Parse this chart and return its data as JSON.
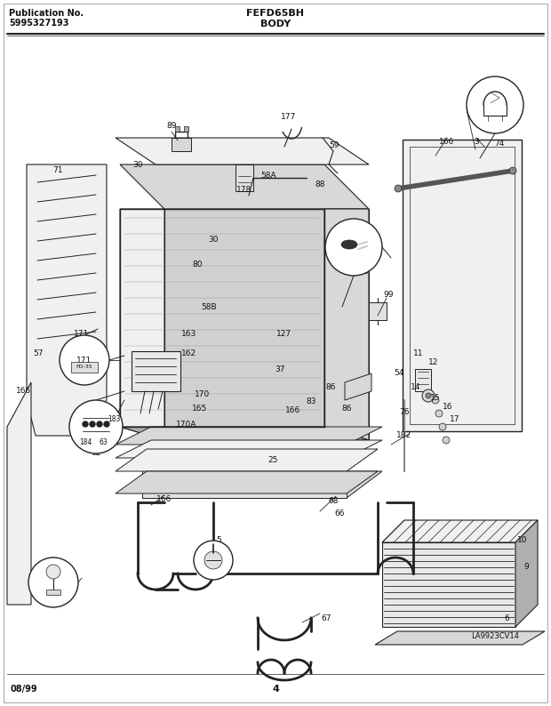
{
  "title_model": "FEFD65BH",
  "title_section": "BODY",
  "pub_label": "Publication No.",
  "pub_number": "5995327193",
  "date_code": "08/99",
  "page_number": "4",
  "watermark": "LA9923CV14",
  "bg_color": "#ffffff",
  "line_color": "#222222",
  "text_color": "#111111",
  "fill_light": "#f0f0f0",
  "fill_mid": "#d8d8d8",
  "fill_dark": "#b0b0b0",
  "fill_interior": "#c8c8c8"
}
